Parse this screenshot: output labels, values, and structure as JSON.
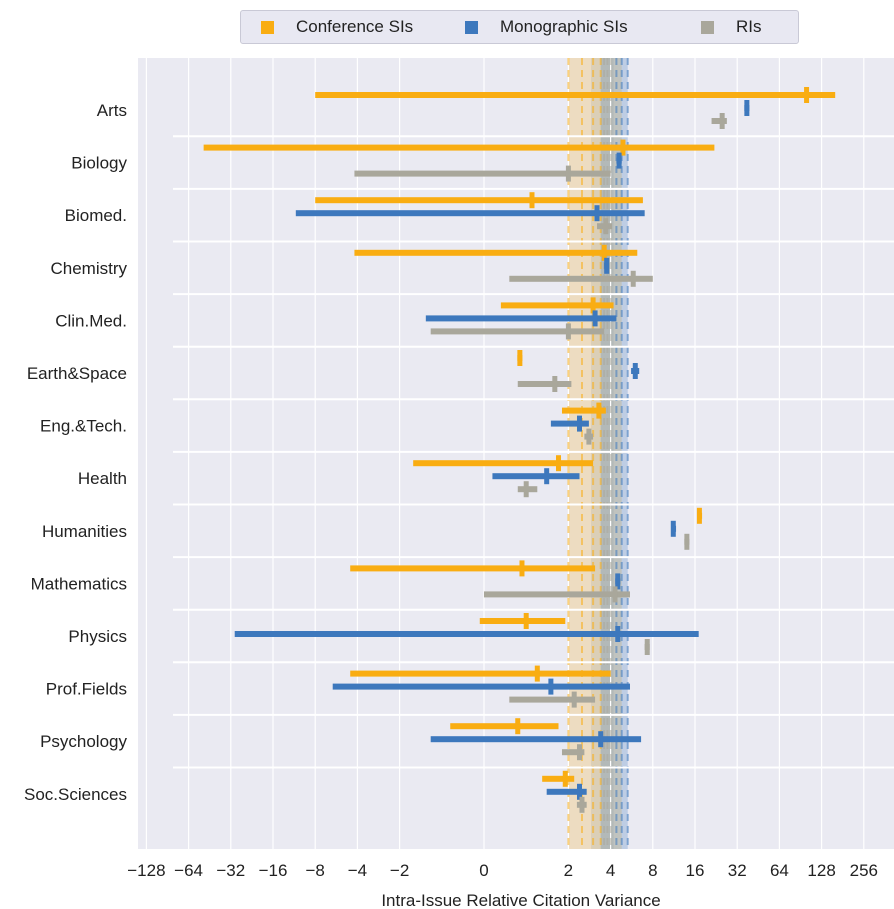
{
  "legend": {
    "conference": "Conference SIs",
    "monographic": "Monographic SIs",
    "ris": "RIs"
  },
  "chart_data": {
    "type": "interval",
    "xlabel": "Intra-Issue Relative Citation Variance",
    "xscale": "symlog",
    "xticks": [
      -128,
      -64,
      -32,
      -16,
      -8,
      -4,
      -2,
      0,
      2,
      4,
      8,
      16,
      32,
      64,
      128,
      256
    ],
    "xtick_labels": [
      "−128",
      "−64",
      "−32",
      "−16",
      "−8",
      "−4",
      "−2",
      "0",
      "2",
      "4",
      "8",
      "16",
      "32",
      "64",
      "128",
      "256"
    ],
    "grid": true,
    "legend_position": "top",
    "colors": {
      "conference": "#f9ad12",
      "monographic": "#3d78bd",
      "ris": "#a9a79b"
    },
    "reference_bands": [
      {
        "series": "conference",
        "range": [
          2.0,
          4.8
        ]
      },
      {
        "series": "ris",
        "range": [
          2.9,
          4.2
        ]
      },
      {
        "series": "monographic",
        "range": [
          3.4,
          5.3
        ]
      }
    ],
    "reference_lines": [
      {
        "series": "conference",
        "values": [
          2.0,
          2.5,
          3.0,
          3.4
        ]
      },
      {
        "series": "ris",
        "values": [
          3.6,
          3.8,
          4.0
        ]
      },
      {
        "series": "monographic",
        "values": [
          4.4,
          4.8,
          5.3
        ]
      }
    ],
    "categories": [
      "Arts",
      "Biology",
      "Biomed.",
      "Chemistry",
      "Clin.Med.",
      "Earth&Space",
      "Eng.&Tech.",
      "Health",
      "Humanities",
      "Mathematics",
      "Physics",
      "Prof.Fields",
      "Psychology",
      "Soc.Sciences"
    ],
    "series": [
      {
        "name": "Conference SIs",
        "key": "conference",
        "intervals": [
          {
            "category": "Arts",
            "low": -8,
            "high": 160,
            "point": 100
          },
          {
            "category": "Biology",
            "low": -50,
            "high": 22,
            "point": 4.9
          },
          {
            "category": "Biomed.",
            "low": -8,
            "high": 6.8,
            "point": 1.1
          },
          {
            "category": "Chemistry",
            "low": -4.2,
            "high": 6.2,
            "point": 3.6
          },
          {
            "category": "Clin.Med.",
            "low": 0.4,
            "high": 4.2,
            "point": 3.0
          },
          {
            "category": "Earth&Space",
            "low": 0.8,
            "high": 0.9,
            "point": 0.85
          },
          {
            "category": "Eng.&Tech.",
            "low": 1.8,
            "high": 3.7,
            "point": 3.3
          },
          {
            "category": "Health",
            "low": -1.6,
            "high": 3.0,
            "point": 1.7
          },
          {
            "category": "Humanities",
            "low": 17,
            "high": 17.5,
            "point": 17.2
          },
          {
            "category": "Mathematics",
            "low": -4.5,
            "high": 3.1,
            "point": 0.9
          },
          {
            "category": "Physics",
            "low": -0.1,
            "high": 1.9,
            "point": 1.0
          },
          {
            "category": "Prof.Fields",
            "low": -4.5,
            "high": 4.0,
            "point": 1.2
          },
          {
            "category": "Psychology",
            "low": -0.8,
            "high": 1.7,
            "point": 0.8
          },
          {
            "category": "Soc.Sciences",
            "low": 1.3,
            "high": 2.2,
            "point": 1.9
          }
        ]
      },
      {
        "name": "Monographic SIs",
        "key": "monographic",
        "intervals": [
          {
            "category": "Arts",
            "low": 37,
            "high": 38,
            "point": 37.5
          },
          {
            "category": "Biology",
            "low": 4.4,
            "high": 4.8,
            "point": 4.6
          },
          {
            "category": "Biomed.",
            "low": -11,
            "high": 7.0,
            "point": 3.2
          },
          {
            "category": "Chemistry",
            "low": 3.6,
            "high": 3.9,
            "point": 3.75
          },
          {
            "category": "Clin.Med.",
            "low": -1.3,
            "high": 4.4,
            "point": 3.1
          },
          {
            "category": "Earth&Space",
            "low": 5.6,
            "high": 6.4,
            "point": 6.0
          },
          {
            "category": "Eng.&Tech.",
            "low": 1.5,
            "high": 2.8,
            "point": 2.4
          },
          {
            "category": "Health",
            "low": 0.2,
            "high": 2.4,
            "point": 1.4
          },
          {
            "category": "Humanities",
            "low": 11,
            "high": 11.5,
            "point": 11.2
          },
          {
            "category": "Mathematics",
            "low": 4.4,
            "high": 4.6,
            "point": 4.5
          },
          {
            "category": "Physics",
            "low": -30,
            "high": 17,
            "point": 4.5
          },
          {
            "category": "Prof.Fields",
            "low": -6,
            "high": 5.5,
            "point": 1.5
          },
          {
            "category": "Psychology",
            "low": -1.2,
            "high": 6.6,
            "point": 3.4
          },
          {
            "category": "Soc.Sciences",
            "low": 1.4,
            "high": 2.7,
            "point": 2.4
          }
        ]
      },
      {
        "name": "RIs",
        "key": "ris",
        "intervals": [
          {
            "category": "Arts",
            "low": 21,
            "high": 27,
            "point": 25
          },
          {
            "category": "Biology",
            "low": -4.2,
            "high": 4.0,
            "point": 2.0
          },
          {
            "category": "Biomed.",
            "low": 3.2,
            "high": 4.1,
            "point": 3.7
          },
          {
            "category": "Chemistry",
            "low": 0.6,
            "high": 8.0,
            "point": 5.8
          },
          {
            "category": "Clin.Med.",
            "low": -1.2,
            "high": 3.6,
            "point": 2.0
          },
          {
            "category": "Earth&Space",
            "low": 0.8,
            "high": 2.1,
            "point": 1.6
          },
          {
            "category": "Eng.&Tech.",
            "low": 2.6,
            "high": 3.0,
            "point": 2.8
          },
          {
            "category": "Health",
            "low": 0.8,
            "high": 1.2,
            "point": 1.0
          },
          {
            "category": "Humanities",
            "low": 13.8,
            "high": 14.2,
            "point": 14
          },
          {
            "category": "Mathematics",
            "low": 0.0,
            "high": 5.5,
            "point": 4.3
          },
          {
            "category": "Physics",
            "low": 7.0,
            "high": 7.6,
            "point": 7.3
          },
          {
            "category": "Prof.Fields",
            "low": 0.6,
            "high": 3.1,
            "point": 2.2
          },
          {
            "category": "Psychology",
            "low": 1.8,
            "high": 2.6,
            "point": 2.4
          },
          {
            "category": "Soc.Sciences",
            "low": 2.3,
            "high": 2.7,
            "point": 2.5
          }
        ]
      }
    ]
  }
}
